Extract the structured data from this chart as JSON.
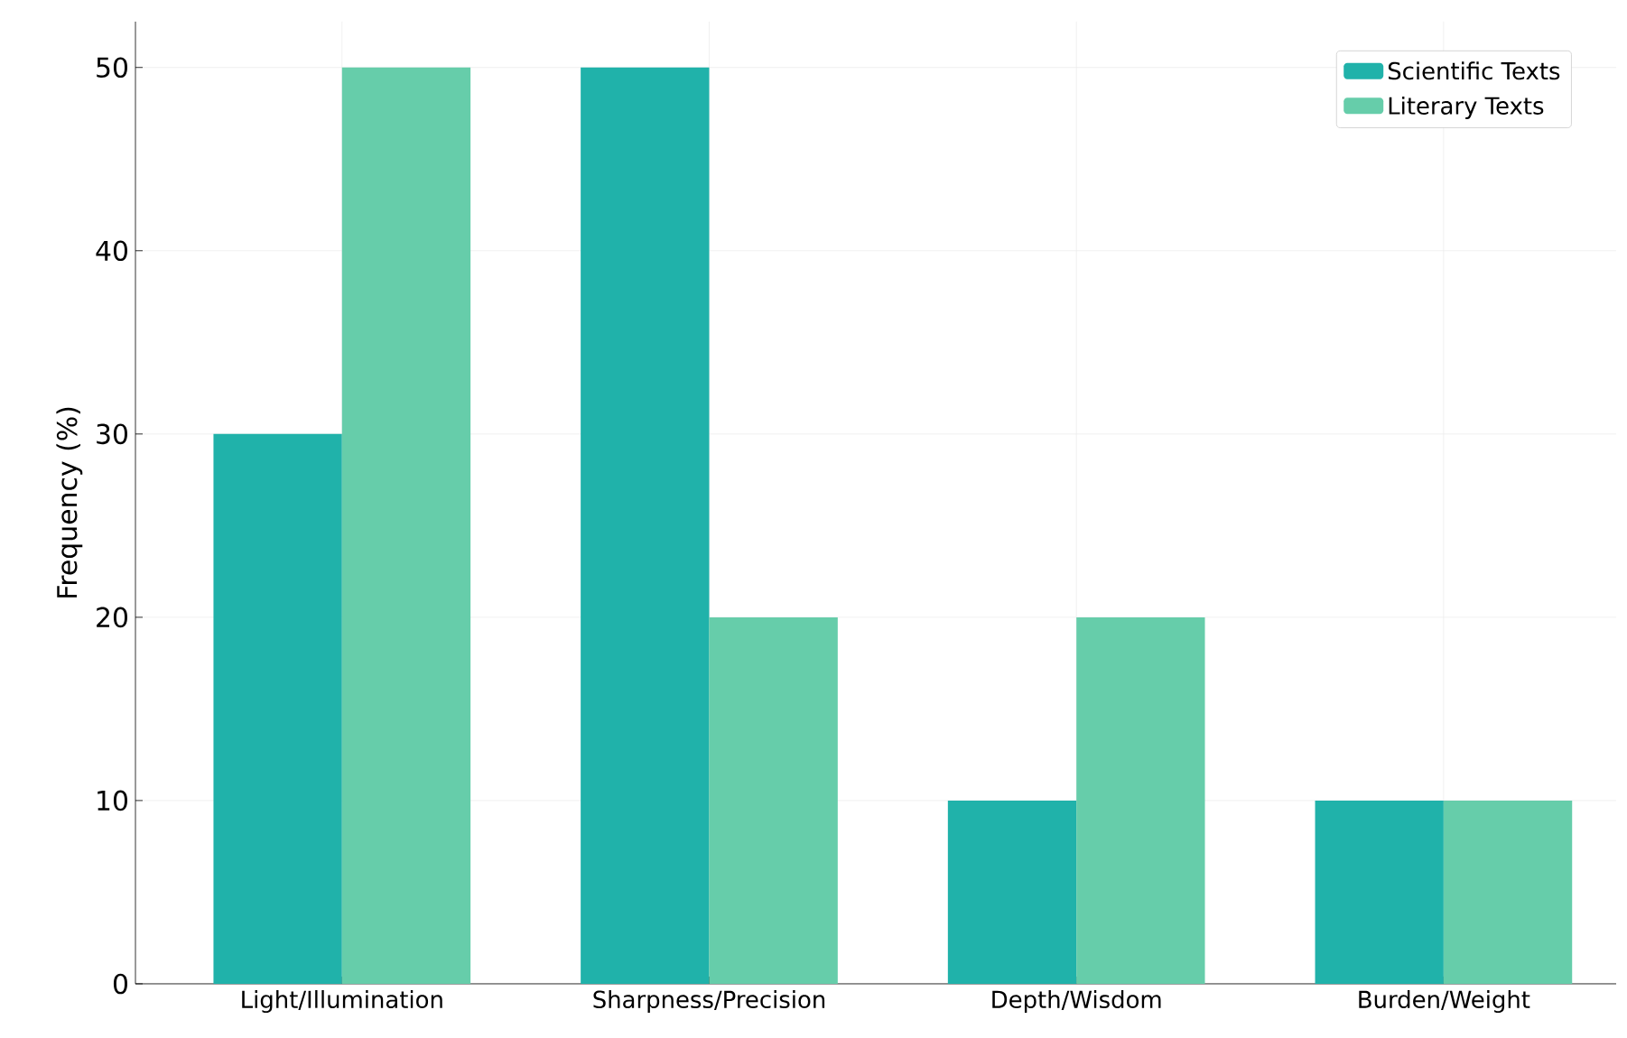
{
  "chart_data": {
    "type": "bar",
    "ylabel": "Frequency (%)",
    "categories": [
      "Light/Illumination",
      "Sharpness/Precision",
      "Depth/Wisdom",
      "Burden/Weight"
    ],
    "series": [
      {
        "name": "Scientific Texts",
        "color": "#20b2aa",
        "values": [
          30,
          50,
          10,
          10
        ]
      },
      {
        "name": "Literary Texts",
        "color": "#66cdaa",
        "values": [
          50,
          20,
          20,
          10
        ]
      }
    ],
    "ylim": [
      0,
      52.5
    ],
    "yticks": [
      0,
      10,
      20,
      30,
      40,
      50
    ],
    "grid": true,
    "legend": "top right"
  }
}
